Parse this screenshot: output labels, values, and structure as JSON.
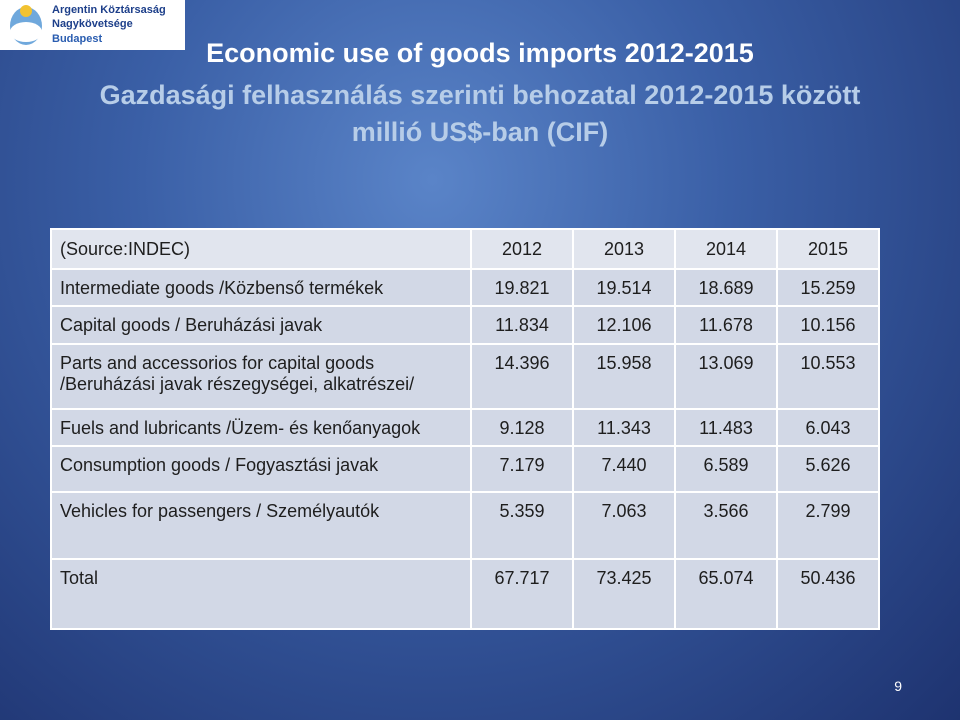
{
  "logo": {
    "line1": "Argentin Köztársaság",
    "line2": "Nagykövetsége",
    "line3": "Budapest"
  },
  "title": {
    "line1": "Economic use of goods imports 2012-2015",
    "line2": "Gazdasági  felhasználás szerinti behozatal 2012-2015 között",
    "line3": "millió US$-ban (CIF)"
  },
  "table": {
    "header": [
      "(Source:INDEC)",
      "2012",
      "2013",
      "2014",
      "2015"
    ],
    "rows": [
      [
        "Intermediate goods /Közbenső termékek",
        "19.821",
        "19.514",
        "18.689",
        "15.259"
      ],
      [
        "Capital goods / Beruházási javak",
        "11.834",
        "12.106",
        "11.678",
        "10.156"
      ],
      [
        "Parts and accessorios for capital goods /Beruházási javak részegységei, alkatrészei/",
        "14.396",
        "15.958",
        "13.069",
        "10.553"
      ],
      [
        "Fuels and lubricants /Üzem- és kenőanyagok",
        "9.128",
        "11.343",
        "11.483",
        "6.043"
      ],
      [
        "Consumption goods / Fogyasztási javak",
        "7.179",
        "7.440",
        "6.589",
        "5.626"
      ],
      [
        "Vehicles for passengers / Személyautók",
        "5.359",
        "7.063",
        "3.566",
        "2.799"
      ],
      [
        "Total",
        "67.717",
        "73.425",
        "65.074",
        "50.436"
      ]
    ]
  },
  "page_number": "9"
}
